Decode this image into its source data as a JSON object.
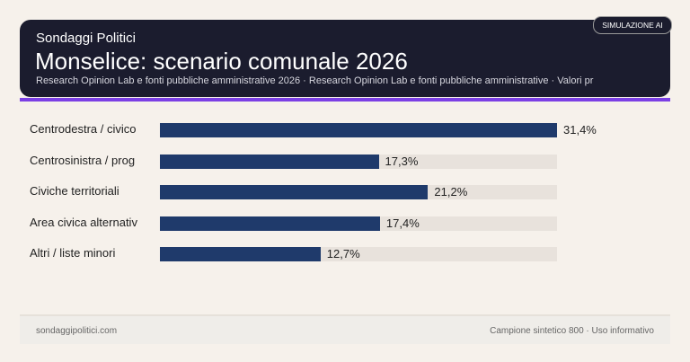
{
  "header": {
    "kicker": "Sondaggi Politici",
    "title": "Monselice: scenario comunale 2026",
    "subtitle": "Research Opinion Lab e fonti pubbliche amministrative 2026 · Research Opinion Lab e fonti pubbliche amministrative · Valori pr",
    "badge": "SIMULAZIONE AI"
  },
  "chart_data": {
    "type": "bar",
    "orientation": "horizontal",
    "categories": [
      "Centrodestra / civico",
      "Centrosinistra / prog",
      "Civiche territoriali",
      "Area civica alternativ",
      "Altri / liste minori"
    ],
    "values": [
      31.4,
      17.3,
      21.2,
      17.4,
      12.7
    ],
    "value_labels": [
      "31,4%",
      "17,3%",
      "21,2%",
      "17,4%",
      "12,7%"
    ],
    "xlim": [
      0,
      31.4
    ],
    "colors": {
      "bar": "#1f3a6b",
      "track": "#e8e2dc",
      "accent": "#7b3fe4"
    }
  },
  "footer": {
    "left": "sondaggipolitici.com",
    "right": "Campione sintetico 800 · Uso informativo"
  }
}
